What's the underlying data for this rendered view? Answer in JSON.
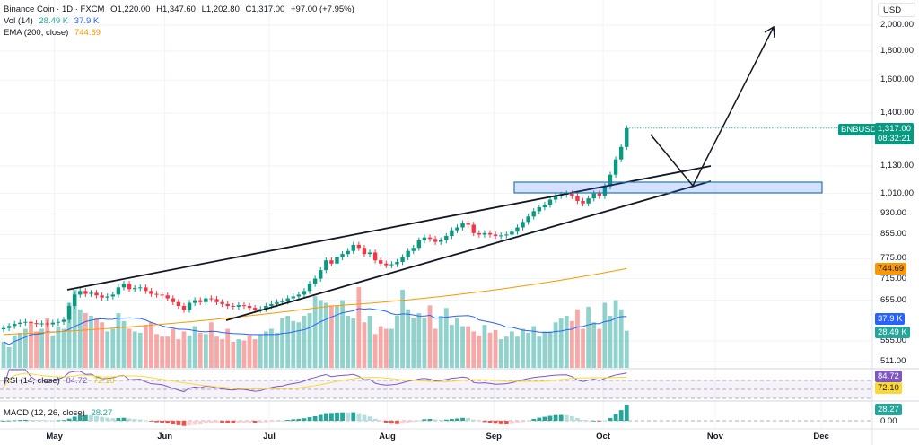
{
  "legend": {
    "symbol": "Binance Coin · 1D · FXCM",
    "open": "O1,220.00",
    "high": "H1,347.60",
    "low": "L1,202.80",
    "close": "C1,317.00",
    "change": "+97.00 (+7.95%)",
    "vol_label": "Vol (14)",
    "vol_value": "28.49 K",
    "vol_ma": "37.9 K",
    "ema_label": "EMA (200, close)",
    "ema_value": "744.69",
    "rsi_label": "RSI (14, close)",
    "rsi_value": "84.72",
    "rsi_ma": "72.10",
    "macd_label": "MACD (12, 26, close)",
    "macd_value": "28.27"
  },
  "price_axis": {
    "currency": "USD",
    "ticks": [
      "2,000.00",
      "1,800.00",
      "1,600.00",
      "1,400.00",
      "1,130.00",
      "1,010.00",
      "930.00",
      "855.00",
      "775.00",
      "715.00",
      "655.00",
      "555.00",
      "511.00"
    ],
    "macd_zero": "0.00",
    "symbol_tag": "BNBUSD",
    "last_price": "1,317.00",
    "countdown": "08:32:21"
  },
  "months": [
    "May",
    "Jun",
    "Jul",
    "Aug",
    "Sep",
    "Oct",
    "Nov",
    "Dec"
  ],
  "colors": {
    "up": "#089981",
    "down": "#f23645",
    "ema": "#ff9800",
    "vol_ma": "#2962ff",
    "rsi": "#7e57c2",
    "rsi_ma": "#fdd835",
    "macd_up": "#26a69a",
    "macd_down": "#ef5350"
  },
  "chart_data": {
    "type": "candlestick",
    "scale": "log",
    "close": [
      585,
      590,
      595,
      598,
      600,
      597,
      595,
      596,
      594,
      598,
      600,
      605,
      640,
      670,
      680,
      672,
      675,
      668,
      662,
      665,
      670,
      690,
      700,
      685,
      688,
      690,
      680,
      672,
      670,
      668,
      660,
      650,
      640,
      630,
      648,
      655,
      650,
      660,
      658,
      650,
      645,
      640,
      638,
      642,
      640,
      635,
      630,
      632,
      640,
      645,
      650,
      652,
      660,
      665,
      670,
      680,
      700,
      715,
      740,
      770,
      760,
      780,
      790,
      800,
      820,
      810,
      790,
      795,
      770,
      760,
      755,
      758,
      765,
      780,
      800,
      810,
      835,
      845,
      840,
      830,
      835,
      850,
      870,
      880,
      895,
      890,
      860,
      855,
      860,
      855,
      850,
      852,
      855,
      865,
      880,
      900,
      920,
      940,
      955,
      965,
      985,
      1000,
      1005,
      1010,
      1000,
      980,
      970,
      990,
      1010,
      1000,
      1040,
      1090,
      1160,
      1220,
      1317
    ],
    "volume_k": [
      20,
      16,
      25,
      27,
      30,
      35,
      28,
      30,
      38,
      25,
      32,
      30,
      50,
      60,
      45,
      42,
      40,
      38,
      35,
      28,
      30,
      42,
      36,
      30,
      28,
      27,
      33,
      35,
      26,
      24,
      24,
      30,
      22,
      28,
      25,
      32,
      27,
      26,
      35,
      24,
      22,
      30,
      20,
      22,
      21,
      25,
      22,
      26,
      28,
      30,
      27,
      38,
      40,
      36,
      35,
      40,
      42,
      55,
      52,
      50,
      48,
      48,
      52,
      40,
      38,
      62,
      35,
      40,
      26,
      32,
      30,
      30,
      40,
      60,
      45,
      38,
      42,
      38,
      48,
      30,
      40,
      46,
      33,
      38,
      32,
      32,
      28,
      25,
      33,
      27,
      29,
      22,
      24,
      28,
      24,
      30,
      27,
      32,
      24,
      28,
      28,
      35,
      38,
      40,
      36,
      45,
      30,
      47,
      35,
      30,
      50,
      40,
      52,
      45,
      28.49
    ],
    "ema200": [
      [
        0,
        570
      ],
      [
        60,
        640
      ],
      [
        114,
        744.69
      ]
    ]
  }
}
